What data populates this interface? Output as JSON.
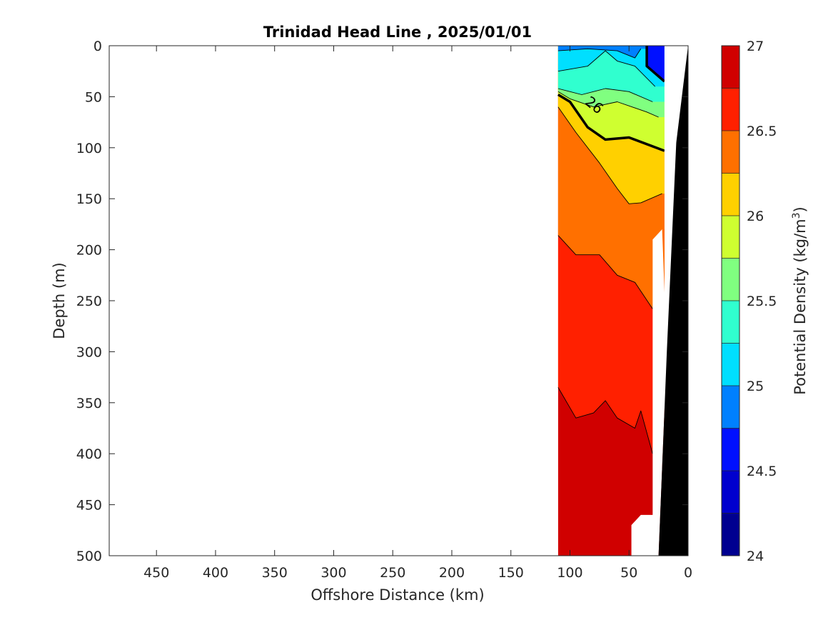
{
  "chart_data": {
    "type": "contour",
    "title": "Trinidad Head Line , 2025/01/01",
    "xlabel": "Offshore Distance (km)",
    "ylabel": "Depth (m)",
    "xlim": [
      490,
      0
    ],
    "ylim": [
      0,
      500
    ],
    "x_reversed": true,
    "y_reversed": true,
    "x_ticks": [
      "450",
      "400",
      "350",
      "300",
      "250",
      "200",
      "150",
      "100",
      "50",
      "0"
    ],
    "y_ticks": [
      "0",
      "50",
      "100",
      "150",
      "200",
      "250",
      "300",
      "350",
      "400",
      "450",
      "500"
    ],
    "colorbar": {
      "label": "Potential Density",
      "label_unit_base": "(kg/m",
      "label_unit_exp": "3",
      "label_unit_close": ")",
      "range": [
        24,
        27
      ],
      "ticks": [
        "24",
        "24.5",
        "25",
        "25.5",
        "26",
        "26.5",
        "27"
      ],
      "levels": [
        24,
        24.25,
        24.5,
        24.75,
        25,
        25.25,
        25.5,
        25.75,
        26,
        26.25,
        26.5,
        26.75,
        27
      ],
      "colors": [
        "#000090",
        "#0000CE",
        "#0010FF",
        "#0080FF",
        "#00DFFF",
        "#30FFCF",
        "#80FF80",
        "#CFFF30",
        "#FFD000",
        "#FF7000",
        "#FF2000",
        "#D00000"
      ]
    },
    "labeled_contour": {
      "value": "26",
      "text": "26"
    },
    "contour_lines": [
      {
        "value": 24.75,
        "points": [
          [
            35,
            0
          ],
          [
            35,
            20
          ],
          [
            20,
            35
          ]
        ]
      },
      {
        "value": 25.0,
        "points": [
          [
            110,
            5
          ],
          [
            85,
            3
          ],
          [
            60,
            5
          ],
          [
            45,
            12
          ],
          [
            40,
            3
          ]
        ]
      },
      {
        "value": 25.25,
        "points": [
          [
            110,
            25
          ],
          [
            85,
            20
          ],
          [
            70,
            5
          ],
          [
            60,
            15
          ],
          [
            45,
            20
          ],
          [
            28,
            40
          ]
        ]
      },
      {
        "value": 25.5,
        "points": [
          [
            110,
            42
          ],
          [
            90,
            48
          ],
          [
            70,
            42
          ],
          [
            50,
            45
          ],
          [
            30,
            55
          ]
        ]
      },
      {
        "value": 25.75,
        "points": [
          [
            110,
            45
          ],
          [
            100,
            52
          ],
          [
            80,
            60
          ],
          [
            60,
            55
          ],
          [
            35,
            65
          ],
          [
            25,
            70
          ]
        ]
      },
      {
        "value": 26.0,
        "points": [
          [
            110,
            48
          ],
          [
            100,
            55
          ],
          [
            85,
            80
          ],
          [
            70,
            92
          ],
          [
            50,
            90
          ],
          [
            20,
            103
          ]
        ]
      },
      {
        "value": 26.25,
        "points": [
          [
            110,
            60
          ],
          [
            95,
            85
          ],
          [
            75,
            115
          ],
          [
            60,
            140
          ],
          [
            50,
            155
          ],
          [
            40,
            154
          ],
          [
            22,
            145
          ]
        ]
      },
      {
        "value": 26.5,
        "points": [
          [
            110,
            186
          ],
          [
            95,
            205
          ],
          [
            75,
            205
          ],
          [
            60,
            225
          ],
          [
            45,
            232
          ],
          [
            30,
            258
          ]
        ]
      },
      {
        "value": 26.75,
        "points": [
          [
            110,
            335
          ],
          [
            95,
            365
          ],
          [
            80,
            360
          ],
          [
            70,
            348
          ],
          [
            60,
            365
          ],
          [
            45,
            375
          ],
          [
            40,
            358
          ],
          [
            30,
            400
          ]
        ]
      }
    ],
    "bottom_profile": [
      [
        0,
        0
      ],
      [
        10,
        95
      ],
      [
        18,
        300
      ],
      [
        25,
        500
      ]
    ],
    "data_extent": {
      "x_min": 20,
      "x_max": 110,
      "depth_min": 0,
      "depth_max": 500
    }
  }
}
